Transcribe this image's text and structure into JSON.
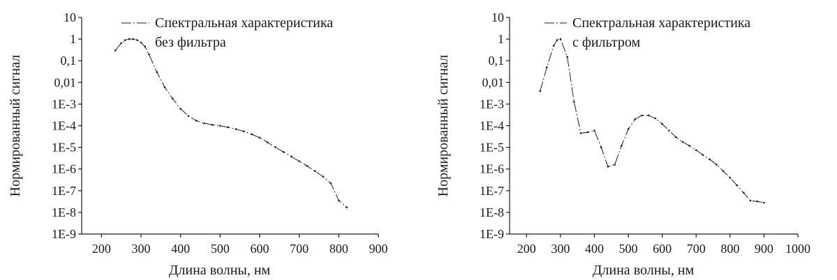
{
  "chart_data": [
    {
      "type": "line",
      "xlabel": "Длина волны, нм",
      "ylabel": "Нормированный сигнал",
      "xlim": [
        150,
        900
      ],
      "xticks": [
        200,
        300,
        400,
        500,
        600,
        700,
        800,
        900
      ],
      "y_scale": "log",
      "ylim": [
        1e-09,
        10
      ],
      "yticks": [
        {
          "value": 10,
          "label": "10"
        },
        {
          "value": 1,
          "label": "1"
        },
        {
          "value": 0.1,
          "label": "0,1"
        },
        {
          "value": 0.01,
          "label": "0,01"
        },
        {
          "value": 0.001,
          "label": "1E-3"
        },
        {
          "value": 0.0001,
          "label": "1E-4"
        },
        {
          "value": 1e-05,
          "label": "1E-5"
        },
        {
          "value": 1e-06,
          "label": "1E-6"
        },
        {
          "value": 1e-07,
          "label": "1E-7"
        },
        {
          "value": 1e-08,
          "label": "1E-8"
        },
        {
          "value": 1e-09,
          "label": "1E-9"
        }
      ],
      "grid": false,
      "legend_position": "top-right",
      "series": [
        {
          "name": "Спектральная характеристика без фильтра",
          "legend_lines": [
            "Спектральная характеристика",
            "без фильтра"
          ],
          "x": [
            235,
            250,
            260,
            270,
            280,
            290,
            300,
            310,
            320,
            340,
            360,
            380,
            400,
            420,
            440,
            460,
            480,
            500,
            520,
            540,
            560,
            580,
            600,
            620,
            640,
            660,
            680,
            700,
            720,
            740,
            760,
            780,
            800,
            820
          ],
          "y": [
            0.3,
            0.65,
            0.9,
            1.0,
            1.0,
            0.9,
            0.7,
            0.45,
            0.2,
            0.03,
            0.006,
            0.0018,
            0.0006,
            0.00028,
            0.00017,
            0.00013,
            0.00011,
            0.0001,
            8.5e-05,
            7e-05,
            5.5e-05,
            4e-05,
            2.8e-05,
            1.7e-05,
            1e-05,
            6.2e-06,
            3.8e-06,
            2.3e-06,
            1.4e-06,
            8e-07,
            4.5e-07,
            2.2e-07,
            3.5e-08,
            1.7e-08
          ]
        }
      ]
    },
    {
      "type": "line",
      "xlabel": "Длина волны, нм",
      "ylabel": "Нормированный сигнал",
      "xlim": [
        150,
        1000
      ],
      "xticks": [
        200,
        300,
        400,
        500,
        600,
        700,
        800,
        900,
        1000
      ],
      "y_scale": "log",
      "ylim": [
        1e-09,
        10
      ],
      "yticks": [
        {
          "value": 10,
          "label": "10"
        },
        {
          "value": 1,
          "label": "1"
        },
        {
          "value": 0.1,
          "label": "0,1"
        },
        {
          "value": 0.01,
          "label": "0,01"
        },
        {
          "value": 0.001,
          "label": "1E-3"
        },
        {
          "value": 0.0001,
          "label": "1E-4"
        },
        {
          "value": 1e-05,
          "label": "1E-5"
        },
        {
          "value": 1e-06,
          "label": "1E-6"
        },
        {
          "value": 1e-07,
          "label": "1E-7"
        },
        {
          "value": 1e-08,
          "label": "1E-8"
        },
        {
          "value": 1e-09,
          "label": "1E-9"
        }
      ],
      "grid": false,
      "legend_position": "top-right",
      "series": [
        {
          "name": "Спектральная характеристика с фильтром",
          "legend_lines": [
            "Спектральная характеристика",
            "с фильтром"
          ],
          "x": [
            240,
            260,
            280,
            290,
            300,
            320,
            340,
            360,
            380,
            400,
            420,
            440,
            460,
            480,
            500,
            520,
            540,
            560,
            580,
            600,
            620,
            640,
            660,
            680,
            700,
            720,
            740,
            760,
            780,
            800,
            820,
            840,
            860,
            880,
            900
          ],
          "y": [
            0.004,
            0.05,
            0.5,
            0.9,
            1.0,
            0.15,
            0.0013,
            4.5e-05,
            5e-05,
            6e-05,
            1e-05,
            1.3e-06,
            1.6e-06,
            1.2e-05,
            7e-05,
            0.0002,
            0.0003,
            0.0003,
            0.00022,
            0.00012,
            6e-05,
            3e-05,
            1.8e-05,
            1.2e-05,
            7.5e-06,
            4.5e-06,
            2.8e-06,
            1.6e-06,
            8e-07,
            4e-07,
            1.8e-07,
            8e-08,
            3.5e-08,
            3.2e-08,
            2.8e-08
          ]
        }
      ]
    }
  ]
}
